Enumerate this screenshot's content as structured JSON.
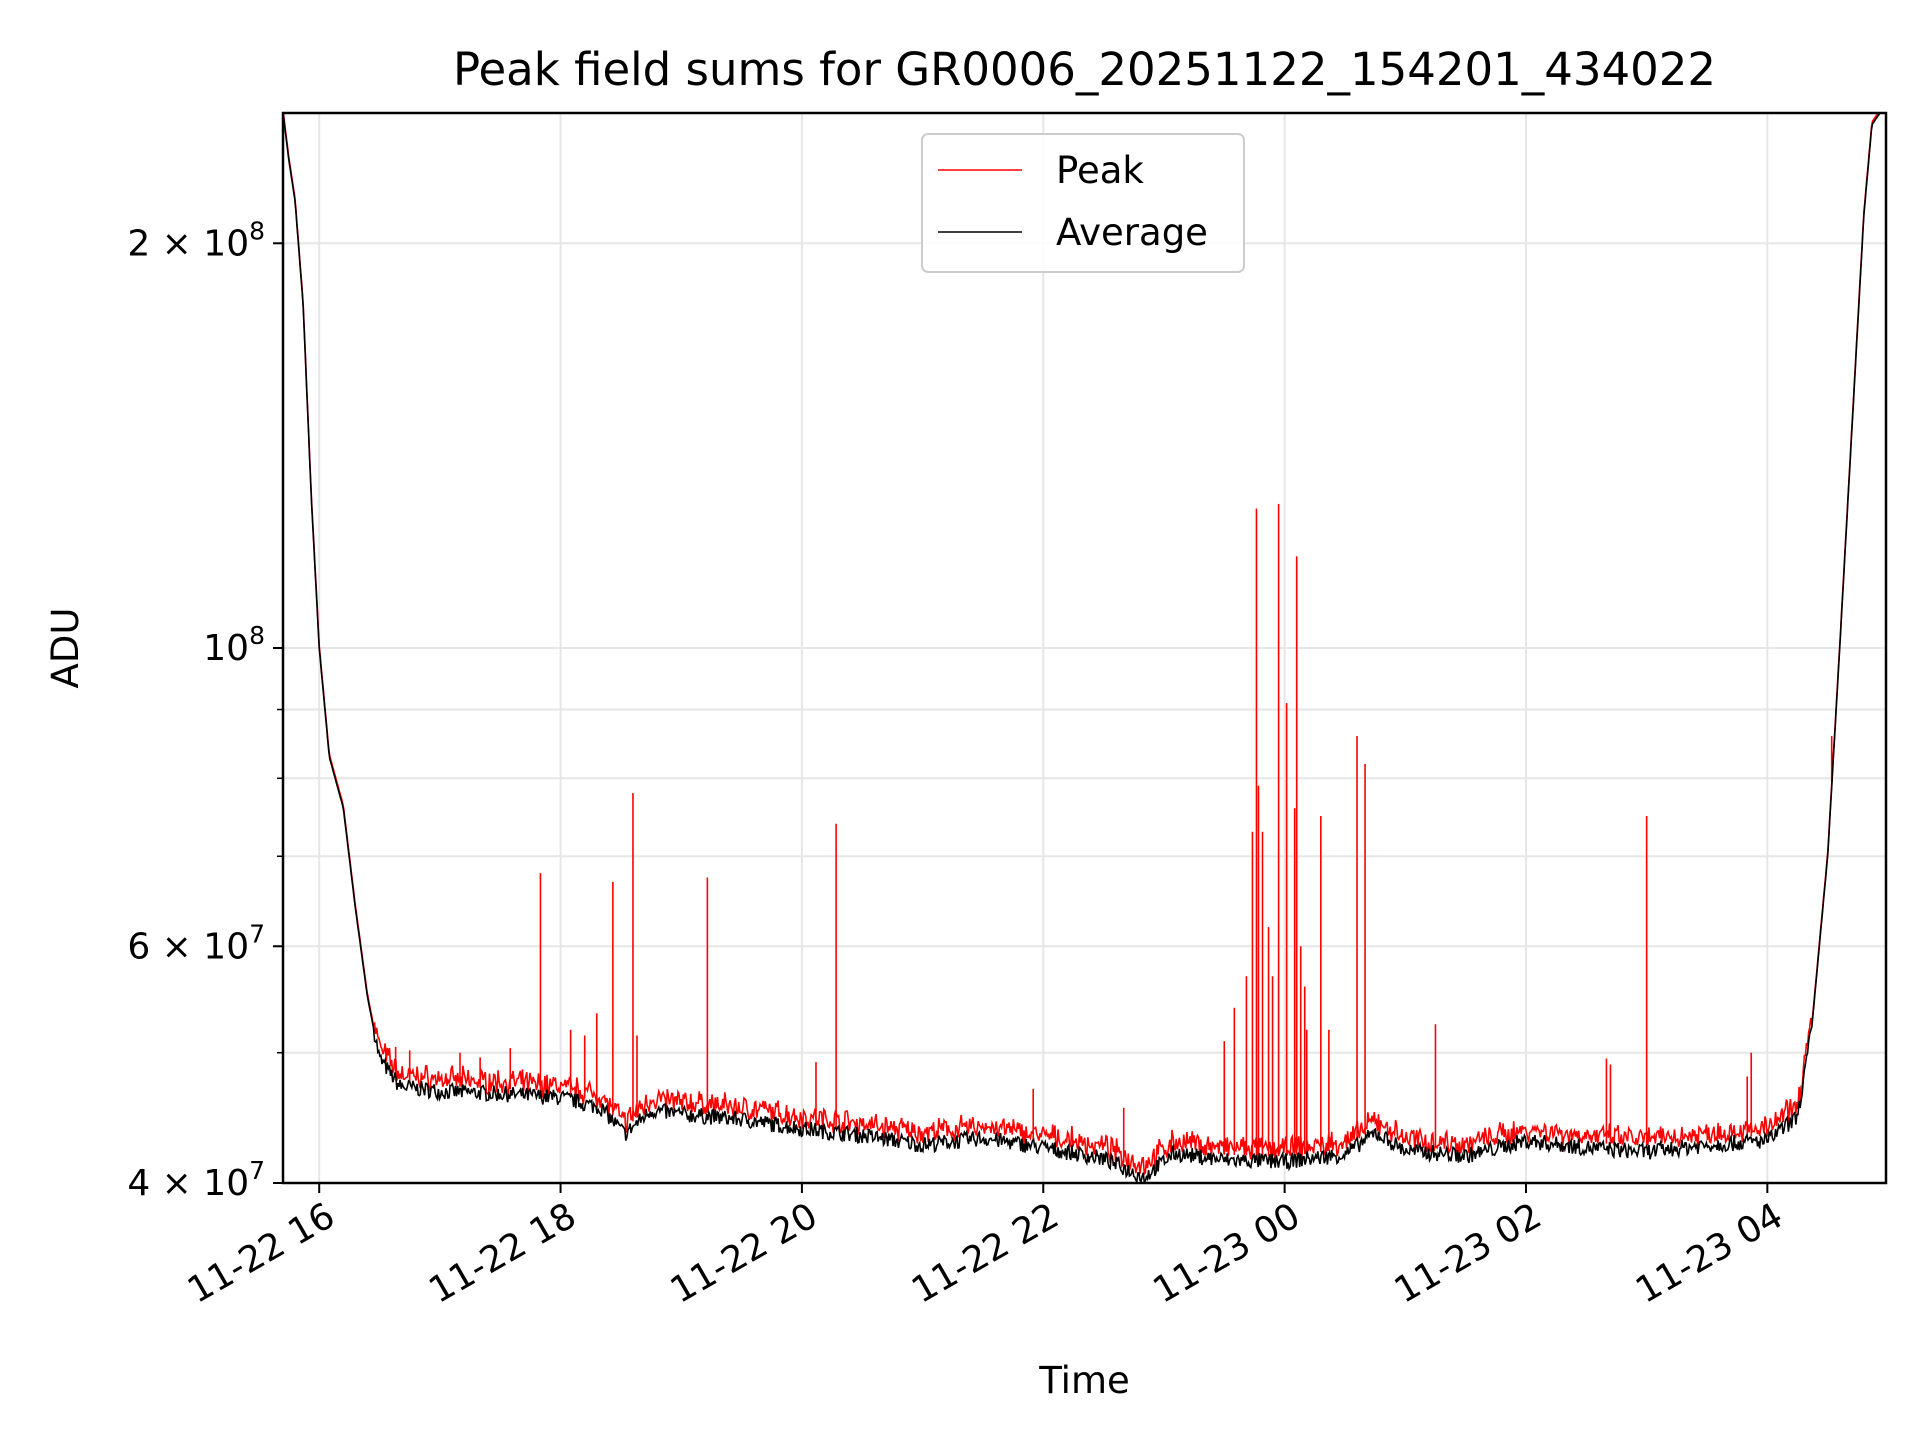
{
  "chart_data": {
    "type": "line",
    "title": "Peak field sums for GR0006_20251122_154201_434022",
    "xlabel": "Time",
    "ylabel": "ADU",
    "yscale": "log",
    "xlim": [
      "2025-11-22 15:42",
      "2025-11-23 04:59"
    ],
    "ylim": [
      40000000,
      250000000
    ],
    "grid": true,
    "legend": {
      "position": "upper center",
      "entries": [
        {
          "label": "Peak",
          "color": "#ff0000"
        },
        {
          "label": "Average",
          "color": "#000000"
        }
      ]
    },
    "x_ticks": [
      {
        "value": "2025-11-22 16:00",
        "label": "11-22 16"
      },
      {
        "value": "2025-11-22 18:00",
        "label": "11-22 18"
      },
      {
        "value": "2025-11-22 20:00",
        "label": "11-22 20"
      },
      {
        "value": "2025-11-22 22:00",
        "label": "11-22 22"
      },
      {
        "value": "2025-11-23 00:00",
        "label": "11-23 00"
      },
      {
        "value": "2025-11-23 02:00",
        "label": "11-23 02"
      },
      {
        "value": "2025-11-23 04:00",
        "label": "11-23 04"
      }
    ],
    "y_ticks": [
      {
        "value": 40000000,
        "mantissa": "4",
        "exp": "7"
      },
      {
        "value": 60000000,
        "mantissa": "6",
        "exp": "7"
      },
      {
        "value": 100000000,
        "mantissa": "",
        "exp": "8"
      },
      {
        "value": 200000000,
        "mantissa": "2",
        "exp": "8"
      }
    ],
    "y_minor_ticks": [
      50000000,
      70000000,
      80000000,
      90000000
    ],
    "series": [
      {
        "name": "Average",
        "color": "#000000",
        "points": [
          [
            "2025-11-22 15:42",
            250000000
          ],
          [
            "2025-11-22 15:45",
            230000000
          ],
          [
            "2025-11-22 15:48",
            215000000
          ],
          [
            "2025-11-22 15:52",
            180000000
          ],
          [
            "2025-11-22 15:56",
            130000000
          ],
          [
            "2025-11-22 16:00",
            100000000
          ],
          [
            "2025-11-22 16:05",
            83000000
          ],
          [
            "2025-11-22 16:12",
            76000000
          ],
          [
            "2025-11-22 16:18",
            64000000
          ],
          [
            "2025-11-22 16:24",
            55000000
          ],
          [
            "2025-11-22 16:30",
            49500000
          ],
          [
            "2025-11-22 16:40",
            47200000
          ],
          [
            "2025-11-22 17:00",
            46800000
          ],
          [
            "2025-11-22 17:30",
            46600000
          ],
          [
            "2025-11-22 18:00",
            46300000
          ],
          [
            "2025-11-22 18:20",
            45500000
          ],
          [
            "2025-11-22 18:32",
            43500000
          ],
          [
            "2025-11-22 18:45",
            45300000
          ],
          [
            "2025-11-22 19:00",
            45000000
          ],
          [
            "2025-11-22 19:30",
            44600000
          ],
          [
            "2025-11-22 20:00",
            43900000
          ],
          [
            "2025-11-22 20:30",
            43400000
          ],
          [
            "2025-11-22 21:00",
            42700000
          ],
          [
            "2025-11-22 21:30",
            43200000
          ],
          [
            "2025-11-22 22:00",
            42500000
          ],
          [
            "2025-11-22 22:30",
            41700000
          ],
          [
            "2025-11-22 22:50",
            40400000
          ],
          [
            "2025-11-22 23:05",
            42100000
          ],
          [
            "2025-11-22 23:30",
            41600000
          ],
          [
            "2025-11-23 00:00",
            41500000
          ],
          [
            "2025-11-23 00:30",
            42000000
          ],
          [
            "2025-11-23 00:45",
            43600000
          ],
          [
            "2025-11-23 01:00",
            42300000
          ],
          [
            "2025-11-23 01:30",
            41900000
          ],
          [
            "2025-11-23 02:00",
            43000000
          ],
          [
            "2025-11-23 02:30",
            42500000
          ],
          [
            "2025-11-23 03:00",
            42200000
          ],
          [
            "2025-11-23 03:30",
            42700000
          ],
          [
            "2025-11-23 04:00",
            43000000
          ],
          [
            "2025-11-23 04:15",
            44800000
          ],
          [
            "2025-11-23 04:22",
            52000000
          ],
          [
            "2025-11-23 04:30",
            70000000
          ],
          [
            "2025-11-23 04:36",
            100000000
          ],
          [
            "2025-11-23 04:42",
            145000000
          ],
          [
            "2025-11-23 04:48",
            210000000
          ],
          [
            "2025-11-23 04:52",
            245000000
          ],
          [
            "2025-11-23 04:56",
            250000000
          ]
        ]
      },
      {
        "name": "Peak",
        "color": "#ff0000",
        "spikes": [
          [
            "2025-11-22 16:38",
            50500000
          ],
          [
            "2025-11-22 16:45",
            50200000
          ],
          [
            "2025-11-22 17:10",
            50000000
          ],
          [
            "2025-11-22 17:20",
            49600000
          ],
          [
            "2025-11-22 17:35",
            50400000
          ],
          [
            "2025-11-22 17:50",
            68000000
          ],
          [
            "2025-11-22 18:05",
            52000000
          ],
          [
            "2025-11-22 18:12",
            51500000
          ],
          [
            "2025-11-22 18:18",
            53500000
          ],
          [
            "2025-11-22 18:26",
            67000000
          ],
          [
            "2025-11-22 18:36",
            78000000
          ],
          [
            "2025-11-22 18:38",
            51500000
          ],
          [
            "2025-11-22 19:13",
            67500000
          ],
          [
            "2025-11-22 20:07",
            49200000
          ],
          [
            "2025-11-22 20:17",
            74000000
          ],
          [
            "2025-11-22 21:55",
            47000000
          ],
          [
            "2025-11-22 22:40",
            45500000
          ],
          [
            "2025-11-22 23:30",
            51000000
          ],
          [
            "2025-11-22 23:35",
            54000000
          ],
          [
            "2025-11-22 23:41",
            57000000
          ],
          [
            "2025-11-22 23:44",
            73000000
          ],
          [
            "2025-11-22 23:46",
            127000000
          ],
          [
            "2025-11-22 23:47",
            79000000
          ],
          [
            "2025-11-22 23:49",
            73000000
          ],
          [
            "2025-11-22 23:52",
            62000000
          ],
          [
            "2025-11-22 23:54",
            57000000
          ],
          [
            "2025-11-22 23:57",
            128000000
          ],
          [
            "2025-11-23 00:01",
            91000000
          ],
          [
            "2025-11-23 00:05",
            76000000
          ],
          [
            "2025-11-23 00:06",
            117000000
          ],
          [
            "2025-11-23 00:08",
            60000000
          ],
          [
            "2025-11-23 00:10",
            56000000
          ],
          [
            "2025-11-23 00:11",
            52000000
          ],
          [
            "2025-11-23 00:18",
            75000000
          ],
          [
            "2025-11-23 00:22",
            52000000
          ],
          [
            "2025-11-23 00:36",
            86000000
          ],
          [
            "2025-11-23 00:40",
            82000000
          ],
          [
            "2025-11-23 01:15",
            52500000
          ],
          [
            "2025-11-23 02:40",
            49500000
          ],
          [
            "2025-11-23 02:42",
            49000000
          ],
          [
            "2025-11-23 03:00",
            75000000
          ],
          [
            "2025-11-23 03:50",
            48000000
          ],
          [
            "2025-11-23 03:52",
            50000000
          ],
          [
            "2025-11-23 04:32",
            86000000
          ]
        ]
      }
    ]
  }
}
